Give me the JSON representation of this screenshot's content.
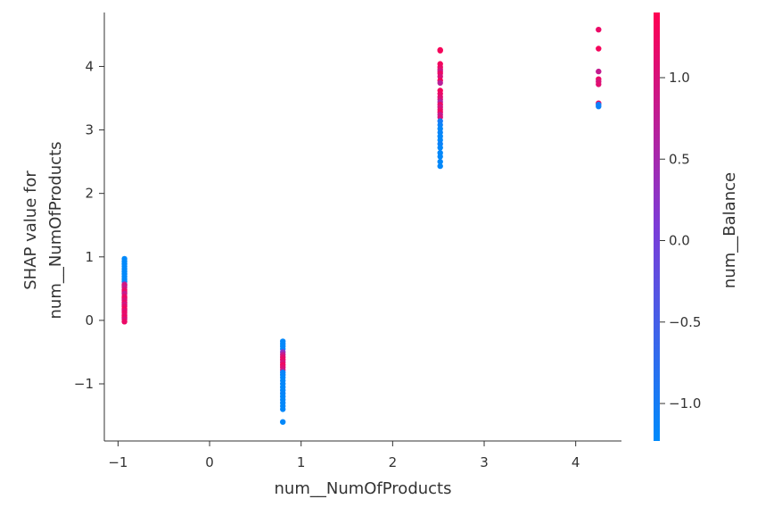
{
  "chart_data": {
    "type": "scatter",
    "xlabel": "num__NumOfProducts",
    "ylabel_lines": [
      "SHAP value for",
      "num__NumOfProducts"
    ],
    "xlim": [
      -1.15,
      4.5
    ],
    "ylim": [
      -1.9,
      4.85
    ],
    "xticks": [
      {
        "value": -1,
        "label": "−1"
      },
      {
        "value": 0,
        "label": "0"
      },
      {
        "value": 1,
        "label": "1"
      },
      {
        "value": 2,
        "label": "2"
      },
      {
        "value": 3,
        "label": "3"
      },
      {
        "value": 4,
        "label": "4"
      }
    ],
    "yticks": [
      {
        "value": -1,
        "label": "−1"
      },
      {
        "value": 0,
        "label": "0"
      },
      {
        "value": 1,
        "label": "1"
      },
      {
        "value": 2,
        "label": "2"
      },
      {
        "value": 3,
        "label": "3"
      },
      {
        "value": 4,
        "label": "4"
      }
    ],
    "colorbar": {
      "label": "num__Balance",
      "range": [
        -1.23,
        1.4
      ],
      "colors": [
        "#008afb",
        "#ff0052"
      ],
      "ticks": [
        {
          "value": 1.0,
          "label": "1.0"
        },
        {
          "value": 0.5,
          "label": "0.5"
        },
        {
          "value": 0.0,
          "label": "0.0"
        },
        {
          "value": -0.5,
          "label": "−0.5"
        },
        {
          "value": -1.0,
          "label": "−1.0"
        }
      ]
    },
    "clusters": [
      {
        "x": -0.93,
        "points": [
          [
            0.97,
            -1.22
          ],
          [
            0.93,
            -1.22
          ],
          [
            0.89,
            -1.22
          ],
          [
            0.85,
            -1.22
          ],
          [
            0.81,
            -1.22
          ],
          [
            0.77,
            -1.22
          ],
          [
            0.73,
            -1.22
          ],
          [
            0.69,
            -1.22
          ],
          [
            0.65,
            -1.21
          ],
          [
            0.61,
            -1.2
          ],
          [
            0.57,
            0.6
          ],
          [
            0.55,
            1.0
          ],
          [
            0.52,
            0.85
          ],
          [
            0.48,
            1.1
          ],
          [
            0.45,
            1.2
          ],
          [
            0.42,
            0.8
          ],
          [
            0.38,
            1.1
          ],
          [
            0.35,
            1.25
          ],
          [
            0.32,
            1.0
          ],
          [
            0.28,
            1.2
          ],
          [
            0.25,
            0.9
          ],
          [
            0.22,
            1.15
          ],
          [
            0.18,
            1.3
          ],
          [
            0.15,
            1.05
          ],
          [
            0.12,
            1.2
          ],
          [
            0.08,
            1.1
          ],
          [
            0.05,
            1.25
          ],
          [
            0.02,
            1.0
          ],
          [
            -0.02,
            1.2
          ]
        ]
      },
      {
        "x": 0.8,
        "points": [
          [
            -0.33,
            -1.2
          ],
          [
            -0.37,
            -1.2
          ],
          [
            -0.41,
            -1.2
          ],
          [
            -0.45,
            -1.18
          ],
          [
            -0.5,
            0.3
          ],
          [
            -0.54,
            0.8
          ],
          [
            -0.58,
            1.1
          ],
          [
            -0.62,
            1.2
          ],
          [
            -0.66,
            1.0
          ],
          [
            -0.7,
            1.25
          ],
          [
            -0.74,
            1.1
          ],
          [
            -0.78,
            0.9
          ],
          [
            -0.82,
            -1.1
          ],
          [
            -0.86,
            -1.15
          ],
          [
            -0.9,
            -1.2
          ],
          [
            -0.95,
            -1.2
          ],
          [
            -1.0,
            -1.18
          ],
          [
            -1.05,
            -1.2
          ],
          [
            -1.1,
            -1.2
          ],
          [
            -1.15,
            -1.15
          ],
          [
            -1.2,
            -1.2
          ],
          [
            -1.25,
            -1.2
          ],
          [
            -1.3,
            -1.18
          ],
          [
            -1.35,
            -1.2
          ],
          [
            -1.4,
            -1.2
          ],
          [
            -1.6,
            -1.2
          ]
        ]
      },
      {
        "x": 2.52,
        "points": [
          [
            4.26,
            1.35
          ],
          [
            4.25,
            1.3
          ],
          [
            4.04,
            1.3
          ],
          [
            3.99,
            1.2
          ],
          [
            3.95,
            1.1
          ],
          [
            3.92,
            0.9
          ],
          [
            3.89,
            1.2
          ],
          [
            3.84,
            1.0
          ],
          [
            3.78,
            1.3
          ],
          [
            3.74,
            0.7
          ],
          [
            3.62,
            1.3
          ],
          [
            3.57,
            1.2
          ],
          [
            3.52,
            1.1
          ],
          [
            3.48,
            1.0
          ],
          [
            3.44,
            0.6
          ],
          [
            3.4,
            1.2
          ],
          [
            3.36,
            0.9
          ],
          [
            3.32,
            1.1
          ],
          [
            3.28,
            1.25
          ],
          [
            3.24,
            0.8
          ],
          [
            3.2,
            1.0
          ],
          [
            3.14,
            -1.0
          ],
          [
            3.08,
            -1.1
          ],
          [
            3.02,
            -1.2
          ],
          [
            2.96,
            -1.15
          ],
          [
            2.9,
            -1.2
          ],
          [
            2.84,
            -1.2
          ],
          [
            2.78,
            -1.1
          ],
          [
            2.72,
            -1.2
          ],
          [
            2.64,
            -1.2
          ],
          [
            2.58,
            -1.2
          ],
          [
            2.5,
            -1.2
          ],
          [
            2.43,
            -1.2
          ]
        ]
      },
      {
        "x": 4.25,
        "points": [
          [
            4.58,
            1.2
          ],
          [
            4.28,
            1.3
          ],
          [
            3.92,
            0.8
          ],
          [
            3.8,
            1.2
          ],
          [
            3.76,
            1.0
          ],
          [
            3.72,
            1.1
          ],
          [
            3.42,
            1.3
          ],
          [
            3.4,
            -1.0
          ],
          [
            3.37,
            -1.1
          ]
        ]
      }
    ]
  }
}
